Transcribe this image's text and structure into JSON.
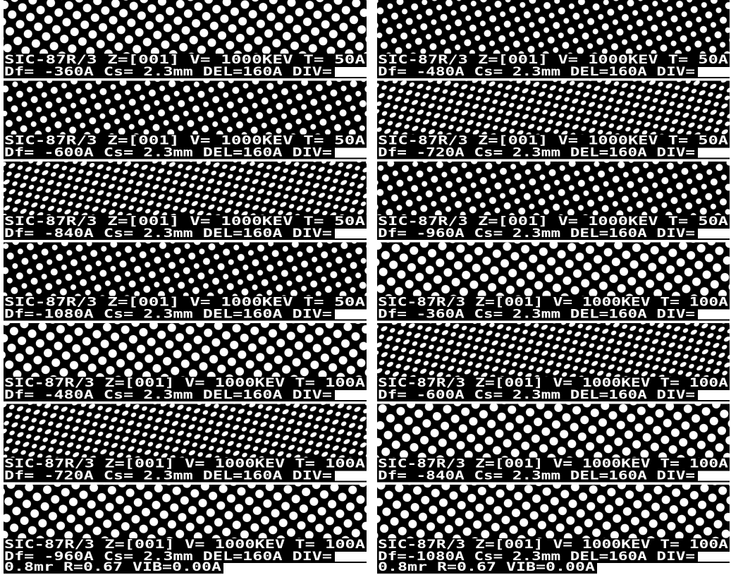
{
  "columns": [
    {
      "panels": [
        {
          "line1": "SIC-87R/3 Z=[001] V= 1000KEV T=  50A",
          "line2": "Df= -360A Cs= 2.3mm DEL=160A DIV="
        },
        {
          "line1": "SIC-87R/3 Z=[001] V= 1000KEV T=  50A",
          "line2": "Df= -600A Cs= 2.3mm DEL=160A DIV="
        },
        {
          "line1": "SIC-87R/3 Z=[001] V= 1000KEV T=  50A",
          "line2": "Df= -840A Cs= 2.3mm DEL=160A DIV="
        },
        {
          "line1": "SIC-87R/3 Z=[001] V= 1000KEV T=  50A",
          "line2": "Df=-1080A Cs= 2.3mm DEL=160A DIV="
        },
        {
          "line1": "SIC-87R/3 Z=[001] V= 1000KEV T= 100A",
          "line2": "Df= -480A Cs= 2.3mm DEL=160A DIV="
        },
        {
          "line1": "SIC-87R/3 Z=[001] V= 1000KEV T= 100A",
          "line2": "Df= -720A Cs= 2.3mm DEL=160A DIV="
        },
        {
          "line1": "SIC-87R/3 Z=[001] V= 1000KEV T= 100A",
          "line2": "Df= -960A Cs= 2.3mm DEL=160A DIV="
        }
      ],
      "footer": "0.8mr R=0.67 VIB=0.00A"
    },
    {
      "panels": [
        {
          "line1": "SIC-87R/3 Z=[001] V= 1000KEV T=  50A",
          "line2": "Df= -480A Cs= 2.3mm DEL=160A DIV="
        },
        {
          "line1": "SIC-87R/3 Z=[001] V= 1000KEV T=  50A",
          "line2": "Df= -720A Cs= 2.3mm DEL=160A DIV="
        },
        {
          "line1": "SIC-87R/3 Z=[001] V= 1000KEV T=  50A",
          "line2": "Df= -960A Cs= 2.3mm DEL=160A DIV="
        },
        {
          "line1": "SIC-87R/3 Z=[001] V= 1000KEV T= 100A",
          "line2": "Df= -360A Cs= 2.3mm DEL=160A DIV="
        },
        {
          "line1": "SIC-87R/3 Z=[001] V= 1000KEV T= 100A",
          "line2": "Df= -600A Cs= 2.3mm DEL=160A DIV="
        },
        {
          "line1": "SIC-87R/3 Z=[001] V= 1000KEV T= 100A",
          "line2": "Df= -840A Cs= 2.3mm DEL=160A DIV="
        },
        {
          "line1": "SIC-87R/3 Z=[001] V= 1000KEV T= 100A",
          "line2": "Df=-1080A Cs= 2.3mm DEL=160A DIV="
        }
      ],
      "footer": "0.8mr R=0.67 VIB=0.00A"
    }
  ]
}
